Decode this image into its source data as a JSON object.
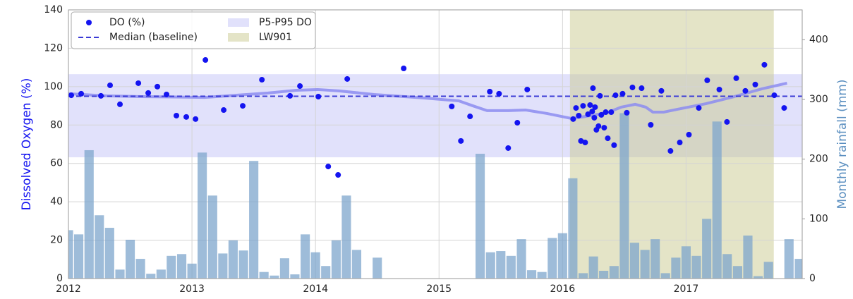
{
  "chart_data": {
    "type": "combo",
    "y_label": "Dissolved Oxygen (%)",
    "y2_label": "Monthly rainfall (mm)",
    "xlim": [
      2012,
      2017.94
    ],
    "xticks": [
      2012,
      2013,
      2014,
      2015,
      2016,
      2017
    ],
    "ylim": [
      0,
      140
    ],
    "yticks": [
      0,
      20,
      40,
      60,
      80,
      100,
      120,
      140
    ],
    "y2lim": [
      0,
      450
    ],
    "y2ticks": [
      0,
      100,
      200,
      300,
      400
    ],
    "grid": true,
    "legend": {
      "loc": "upper left",
      "ncol": 2
    },
    "bands": [
      {
        "name": "P5-P95 DO",
        "axis": "y",
        "range": [
          63.2,
          106.5
        ],
        "color": "#c8c8f8"
      },
      {
        "name": "LW901",
        "axis": "x",
        "range": [
          2016.06,
          2017.71
        ],
        "color": "#c9c98f"
      }
    ],
    "hlines": [
      {
        "name": "Median (baseline)",
        "value": 95,
        "color": "#3a3ad6",
        "style": "dashed"
      }
    ],
    "series": [
      {
        "type": "bar",
        "axis": "y2",
        "color": "#7ea6cc",
        "x": [
          2012,
          2012.083,
          2012.167,
          2012.25,
          2012.333,
          2012.417,
          2012.5,
          2012.583,
          2012.667,
          2012.75,
          2012.833,
          2012.917,
          2013,
          2013.083,
          2013.167,
          2013.25,
          2013.333,
          2013.417,
          2013.5,
          2013.583,
          2013.667,
          2013.75,
          2013.833,
          2013.917,
          2014,
          2014.083,
          2014.167,
          2014.25,
          2014.333,
          2014.5,
          2015.333,
          2015.417,
          2015.5,
          2015.583,
          2015.667,
          2015.75,
          2015.833,
          2015.917,
          2016,
          2016.083,
          2016.167,
          2016.25,
          2016.333,
          2016.417,
          2016.5,
          2016.583,
          2016.667,
          2016.75,
          2016.833,
          2016.917,
          2017,
          2017.083,
          2017.167,
          2017.25,
          2017.333,
          2017.417,
          2017.5,
          2017.583,
          2017.667,
          2017.833,
          2017.917
        ],
        "values": [
          81,
          74,
          215,
          106,
          85,
          15,
          65,
          33,
          8,
          15,
          38,
          41,
          25,
          211,
          139,
          42,
          64,
          47,
          197,
          11,
          5,
          34,
          7,
          74,
          44,
          21,
          64,
          139,
          48,
          35,
          209,
          44,
          46,
          38,
          66,
          14,
          11,
          68,
          76,
          168,
          9,
          37,
          13,
          21,
          277,
          60,
          48,
          66,
          9,
          35,
          54,
          38,
          100,
          263,
          41,
          21,
          72,
          4,
          28,
          66,
          33
        ]
      },
      {
        "type": "line",
        "axis": "y",
        "color": "#8c8cf0",
        "x": [
          2012,
          2012.303,
          2012.589,
          2013.103,
          2013.617,
          2013.846,
          2014.017,
          2014.189,
          2014.474,
          2014.874,
          2015.16,
          2015.274,
          2015.389,
          2015.56,
          2015.703,
          2015.874,
          2016.074,
          2016.189,
          2016.36,
          2016.474,
          2016.589,
          2016.674,
          2016.731,
          2016.817,
          2016.931,
          2017.16,
          2017.389,
          2017.617,
          2017.817
        ],
        "values": [
          96.3,
          95.2,
          94.8,
          94.4,
          96.7,
          98.1,
          98.5,
          97.8,
          95.9,
          94.1,
          92.6,
          90.0,
          87.5,
          87.5,
          87.8,
          86.0,
          83.4,
          84.5,
          86.4,
          89.3,
          90.8,
          89.3,
          86.7,
          86.7,
          88.2,
          91.1,
          94.8,
          98.9,
          101.8
        ]
      },
      {
        "type": "scatter",
        "axis": "y",
        "name": "DO (%)",
        "color": "#1414f0",
        "x": [
          2012.023,
          2012.103,
          2012.263,
          2012.337,
          2012.417,
          2012.566,
          2012.646,
          2012.72,
          2012.794,
          2012.874,
          2012.954,
          2013.029,
          2013.109,
          2013.257,
          2013.411,
          2013.566,
          2013.794,
          2013.874,
          2014.023,
          2014.103,
          2014.183,
          2014.257,
          2014.714,
          2015.103,
          2015.177,
          2015.251,
          2015.411,
          2015.486,
          2015.56,
          2015.634,
          2015.714,
          2016.086,
          2016.109,
          2016.131,
          2016.149,
          2016.166,
          2016.183,
          2016.206,
          2016.223,
          2016.24,
          2016.246,
          2016.257,
          2016.263,
          2016.274,
          2016.291,
          2016.303,
          2016.314,
          2016.337,
          2016.349,
          2016.366,
          2016.394,
          2016.417,
          2016.429,
          2016.486,
          2016.52,
          2016.566,
          2016.64,
          2016.714,
          2016.8,
          2016.874,
          2016.949,
          2017.023,
          2017.103,
          2017.171,
          2017.269,
          2017.331,
          2017.406,
          2017.48,
          2017.56,
          2017.634,
          2017.714,
          2017.794
        ],
        "values": [
          95.5,
          96.3,
          95.2,
          100.7,
          90.8,
          101.8,
          96.7,
          100.0,
          95.9,
          84.9,
          84.2,
          83.1,
          113.9,
          87.8,
          90.0,
          103.6,
          95.2,
          100.3,
          94.8,
          58.4,
          54.0,
          104.0,
          109.5,
          89.7,
          71.7,
          84.5,
          97.4,
          96.3,
          68.0,
          81.2,
          98.5,
          83.1,
          88.9,
          84.9,
          71.7,
          90.0,
          70.9,
          85.6,
          90.4,
          87.1,
          99.2,
          83.8,
          89.3,
          77.5,
          79.4,
          95.2,
          85.3,
          78.6,
          86.7,
          73.1,
          86.7,
          69.5,
          95.5,
          96.3,
          86.4,
          99.6,
          99.2,
          80.1,
          97.8,
          66.5,
          70.9,
          75.0,
          88.9,
          103.3,
          98.5,
          81.6,
          104.4,
          97.8,
          101.1,
          111.4,
          95.5,
          88.9
        ]
      }
    ]
  }
}
